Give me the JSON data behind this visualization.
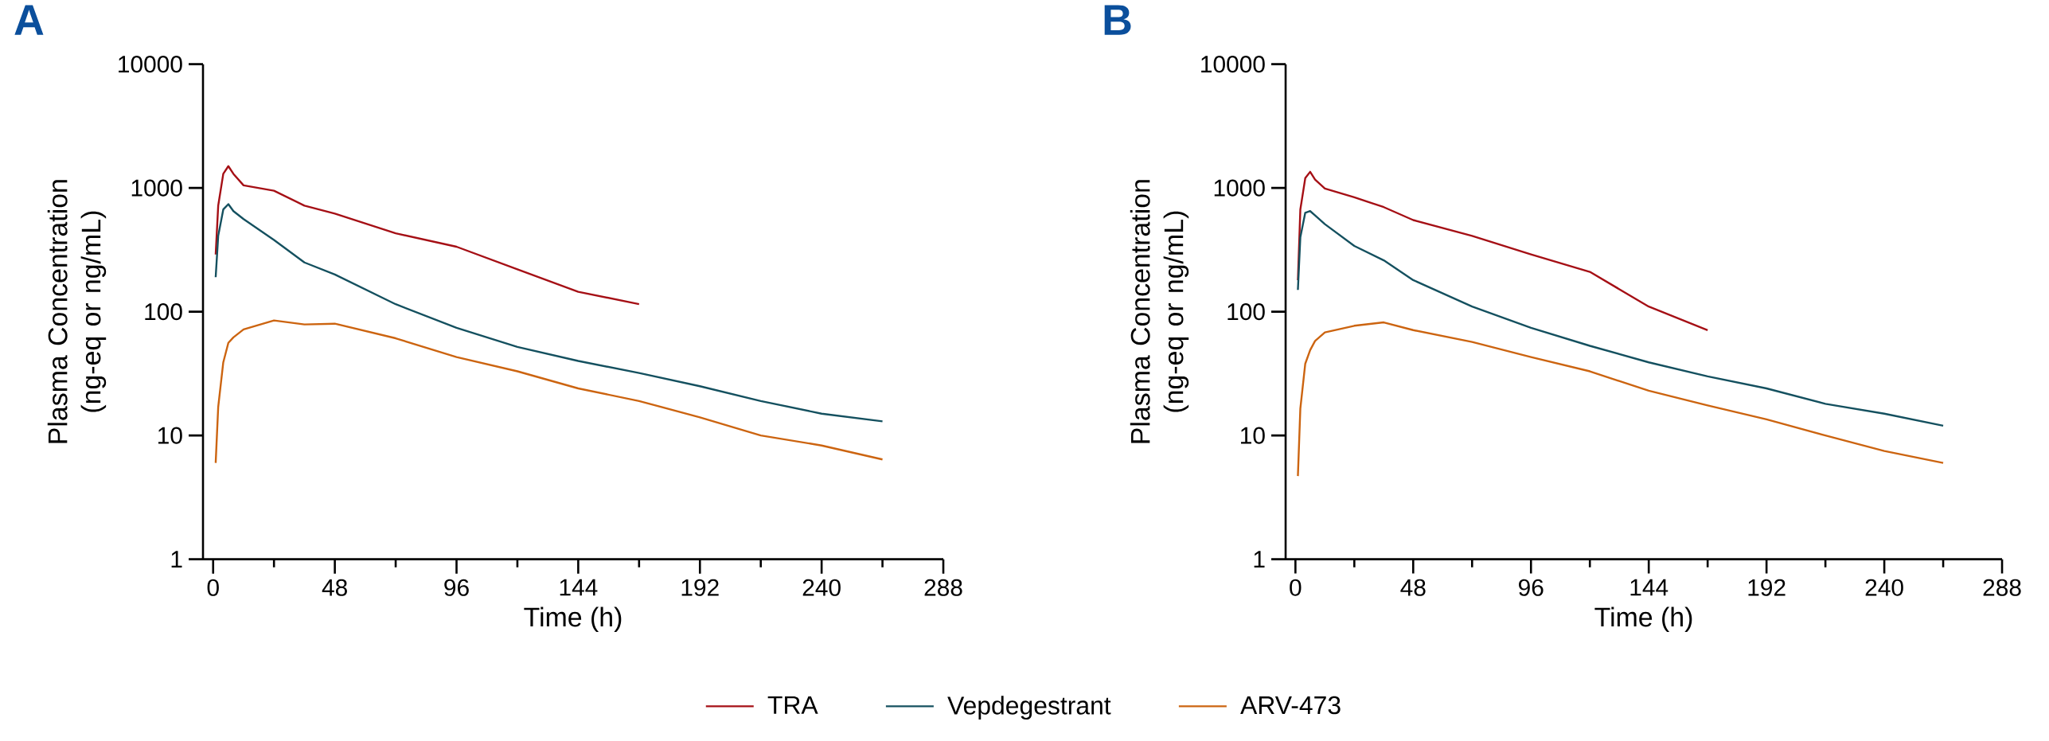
{
  "chart_data": [
    {
      "type": "line",
      "title": "A",
      "xlabel": "Time (h)",
      "ylabel": "Plasma Concentration (ng-eq or ng/mL)",
      "log": true,
      "legend": "bottom",
      "x": [
        1,
        2,
        4,
        6,
        8,
        12,
        24,
        36,
        48,
        72,
        96,
        120,
        144,
        168,
        192,
        216,
        240,
        264
      ],
      "xlim": [
        -4,
        288
      ],
      "xticks": [
        0,
        {
          "value": 24,
          "label": null
        },
        48,
        {
          "value": 72,
          "label": null
        },
        96,
        {
          "value": 120,
          "label": null
        },
        144,
        {
          "value": 168,
          "label": null
        },
        192,
        {
          "value": 216,
          "label": null
        },
        240,
        {
          "value": 264,
          "label": null
        },
        288
      ],
      "ylim": [
        1,
        10000
      ],
      "yticks": [
        1,
        10,
        100,
        1000,
        10000
      ],
      "series": [
        {
          "name": "TRA",
          "color": "#a50f15",
          "values": [
            290,
            720,
            1300,
            1500,
            1300,
            1050,
            950,
            720,
            620,
            430,
            335,
            220,
            145,
            115,
            null,
            null,
            null,
            null
          ]
        },
        {
          "name": "Vepdegestrant",
          "color": "#14505f",
          "values": [
            190,
            410,
            670,
            740,
            650,
            560,
            380,
            250,
            200,
            115,
            74,
            52,
            40,
            32,
            25,
            19,
            15,
            13
          ]
        },
        {
          "name": "ARV-473",
          "color": "#cc6410",
          "values": [
            6,
            17,
            39,
            56,
            62,
            72,
            85,
            79,
            80,
            61,
            43,
            33,
            24,
            19,
            14,
            10,
            8.3,
            6.4
          ]
        }
      ]
    },
    {
      "type": "line",
      "title": "B",
      "xlabel": "Time (h)",
      "ylabel": "Plasma Concentration (ng-eq or ng/mL)",
      "log": true,
      "x": [
        1,
        2,
        4,
        6,
        8,
        12,
        24,
        36,
        48,
        72,
        96,
        120,
        144,
        168,
        192,
        216,
        240,
        264
      ],
      "xlim": [
        -4,
        288
      ],
      "xticks": [
        0,
        {
          "value": 24,
          "label": null
        },
        48,
        {
          "value": 72,
          "label": null
        },
        96,
        {
          "value": 120,
          "label": null
        },
        144,
        {
          "value": 168,
          "label": null
        },
        192,
        {
          "value": 216,
          "label": null
        },
        240,
        {
          "value": 264,
          "label": null
        },
        288
      ],
      "ylim": [
        1,
        10000
      ],
      "yticks": [
        1,
        10,
        100,
        1000,
        10000
      ],
      "series": [
        {
          "color": "#a50f15",
          "values": [
            180,
            670,
            1200,
            1350,
            1170,
            990,
            840,
            700,
            550,
            410,
            290,
            210,
            110,
            71,
            null,
            null,
            null,
            null
          ]
        },
        {
          "color": "#14505f",
          "values": [
            150,
            400,
            630,
            650,
            600,
            510,
            340,
            260,
            180,
            110,
            74,
            53,
            39,
            30,
            24,
            18,
            15,
            12
          ]
        },
        {
          "color": "#cc6410",
          "values": [
            4.7,
            16.5,
            38,
            49,
            58,
            68,
            77,
            82,
            71,
            57,
            43,
            33,
            23,
            17.5,
            13.5,
            10,
            7.5,
            6
          ]
        }
      ]
    }
  ]
}
